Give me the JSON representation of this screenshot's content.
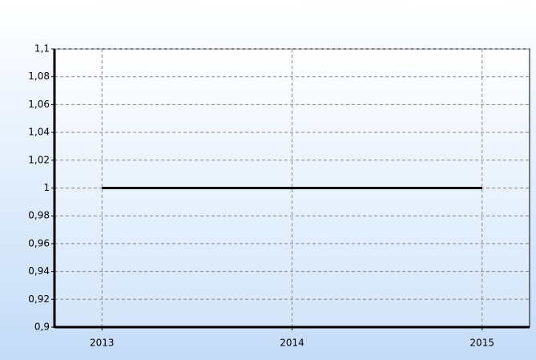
{
  "chart_data": {
    "type": "line",
    "x": [
      2013,
      2014,
      2015
    ],
    "series": [
      {
        "color": "#000000",
        "values": [
          1,
          1,
          1
        ]
      }
    ],
    "xlim": [
      2012.75,
      2015.25
    ],
    "xticks": [
      2013,
      2014,
      2015
    ],
    "ylim": [
      0.9,
      1.1
    ],
    "yticks": [
      {
        "value": 0.9,
        "label": "0,9"
      },
      {
        "value": 0.92,
        "label": "0,92"
      },
      {
        "value": 0.94,
        "label": "0,94"
      },
      {
        "value": 0.96,
        "label": "0,96"
      },
      {
        "value": 0.98,
        "label": "0,98"
      },
      1,
      {
        "value": 1.02,
        "label": "1,02"
      },
      {
        "value": 1.04,
        "label": "1,04"
      },
      {
        "value": 1.06,
        "label": "1,06"
      },
      {
        "value": 1.08,
        "label": "1,08"
      },
      {
        "value": 1.1,
        "label": "1,1"
      }
    ],
    "grid": true
  }
}
